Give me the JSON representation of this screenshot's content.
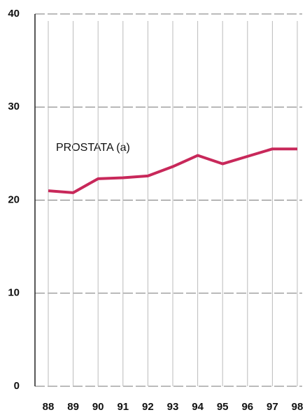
{
  "chart_data": {
    "type": "line",
    "annotation": "PROSTATA (a)",
    "categories": [
      "88",
      "89",
      "90",
      "91",
      "92",
      "93",
      "94",
      "95",
      "96",
      "97",
      "98"
    ],
    "series": [
      {
        "name": "PROSTATA (a)",
        "color": "#c8285a",
        "values": [
          21.0,
          20.8,
          22.3,
          22.4,
          22.6,
          23.6,
          24.8,
          23.9,
          24.7,
          25.5,
          25.5
        ]
      }
    ],
    "ylim": [
      0,
      40
    ],
    "yticks": [
      0,
      10,
      20,
      30,
      40
    ],
    "grid": true
  }
}
